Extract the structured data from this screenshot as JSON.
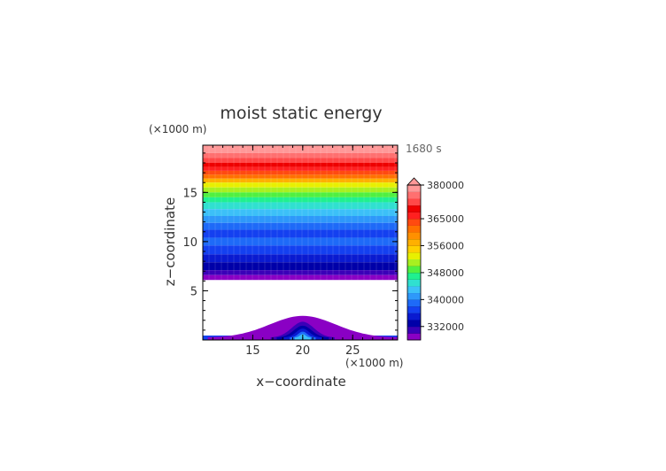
{
  "chart_data": {
    "type": "heatmap",
    "title": "moist static energy",
    "xlabel": "x−coordinate",
    "ylabel": "z−coordinate",
    "x_unit": "(×1000 m)",
    "y_unit": "(×1000 m)",
    "time_label": "1680 s",
    "xlim": [
      10,
      29.5
    ],
    "ylim": [
      0,
      19.8
    ],
    "x_ticks": [
      15,
      20,
      25
    ],
    "y_ticks": [
      5,
      10,
      15
    ],
    "colorbar": {
      "levels": [
        328000,
        330000,
        332000,
        334000,
        336000,
        338000,
        340000,
        342000,
        344000,
        346000,
        348000,
        350000,
        352000,
        354000,
        356000,
        358000,
        360000,
        362000,
        365000,
        368000,
        371000,
        374000,
        377000,
        380000,
        383000,
        386000
      ],
      "labels": [
        "332000",
        "340000",
        "348000",
        "356000",
        "365000",
        "380000"
      ],
      "extend": "max",
      "colors": [
        "#8a00c4",
        "#3a00b8",
        "#0000a8",
        "#0a1ad0",
        "#1440f0",
        "#1e6af8",
        "#2e98fa",
        "#3cc0f8",
        "#30e0d0",
        "#20f090",
        "#50f040",
        "#a8f020",
        "#e8f000",
        "#ffd000",
        "#ffb000",
        "#ff9000",
        "#ff7000",
        "#ff4a10",
        "#ff2020",
        "#ee0000",
        "#ff4848",
        "#ff7070",
        "#ff9898"
      ]
    },
    "bands": [
      {
        "z0": 19.0,
        "z1": 19.8,
        "color_index": 22
      },
      {
        "z0": 18.5,
        "z1": 19.0,
        "color_index": 21
      },
      {
        "z0": 18.0,
        "z1": 18.5,
        "color_index": 20
      },
      {
        "z0": 17.6,
        "z1": 18.0,
        "color_index": 19
      },
      {
        "z0": 17.2,
        "z1": 17.6,
        "color_index": 18
      },
      {
        "z0": 16.8,
        "z1": 17.2,
        "color_index": 17
      },
      {
        "z0": 16.4,
        "z1": 16.8,
        "color_index": 16
      },
      {
        "z0": 16.0,
        "z1": 16.4,
        "color_index": 14
      },
      {
        "z0": 15.5,
        "z1": 16.0,
        "color_index": 12
      },
      {
        "z0": 15.0,
        "z1": 15.5,
        "color_index": 11
      },
      {
        "z0": 14.5,
        "z1": 15.0,
        "color_index": 10
      },
      {
        "z0": 14.0,
        "z1": 14.5,
        "color_index": 9
      },
      {
        "z0": 13.3,
        "z1": 14.0,
        "color_index": 8
      },
      {
        "z0": 12.6,
        "z1": 13.3,
        "color_index": 7
      },
      {
        "z0": 11.9,
        "z1": 12.6,
        "color_index": 6
      },
      {
        "z0": 11.2,
        "z1": 11.9,
        "color_index": 5
      },
      {
        "z0": 10.4,
        "z1": 11.2,
        "color_index": 4
      },
      {
        "z0": 9.6,
        "z1": 10.4,
        "color_index": 5
      },
      {
        "z0": 8.7,
        "z1": 9.6,
        "color_index": 4
      },
      {
        "z0": 7.9,
        "z1": 8.7,
        "color_index": 3
      },
      {
        "z0": 7.1,
        "z1": 7.9,
        "color_index": 2
      },
      {
        "z0": 6.6,
        "z1": 7.1,
        "color_index": 1
      },
      {
        "z0": 6.1,
        "z1": 6.6,
        "color_index": 0
      }
    ],
    "mound": {
      "center_x": 20,
      "layers": [
        {
          "height": 2.2,
          "half_width": 9.5,
          "color_index": 0
        },
        {
          "height": 1.6,
          "half_width": 3.2,
          "color_index": 1
        },
        {
          "height": 1.2,
          "half_width": 2.6,
          "color_index": 2
        },
        {
          "height": 0.9,
          "half_width": 1.9,
          "color_index": 3
        },
        {
          "height": 0.6,
          "half_width": 1.3,
          "color_index": 5
        },
        {
          "height": 0.35,
          "half_width": 0.8,
          "color_index": 7
        }
      ],
      "surface": {
        "height": 0.45,
        "color_index": 4
      }
    }
  }
}
